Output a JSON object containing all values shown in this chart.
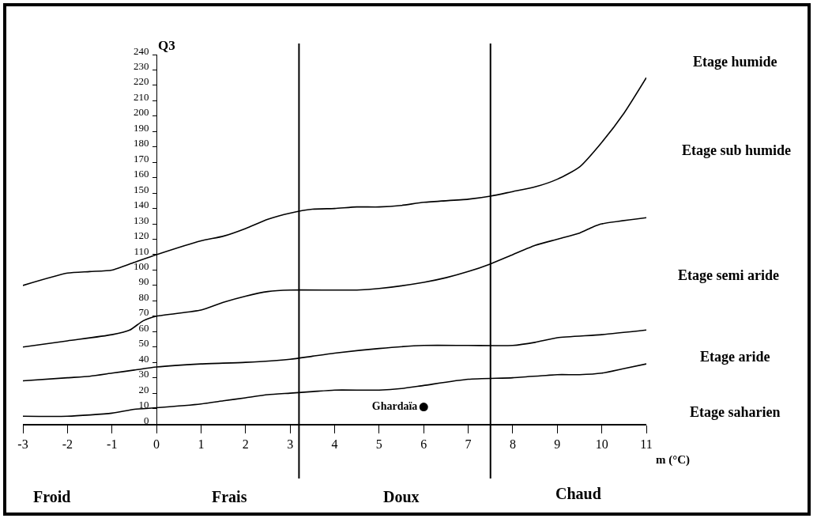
{
  "chart_data": {
    "type": "line",
    "xlabel": "m (°C)",
    "ylabel": "Q3",
    "xlim": [
      -3,
      11
    ],
    "xticks": [
      -3,
      -2,
      -1,
      0,
      1,
      2,
      3,
      4,
      5,
      6,
      7,
      8,
      9,
      10,
      11
    ],
    "ylim": [
      0,
      240
    ],
    "yticks": [
      0,
      10,
      20,
      30,
      40,
      50,
      60,
      70,
      80,
      90,
      100,
      110,
      120,
      130,
      140,
      150,
      160,
      170,
      180,
      190,
      200,
      210,
      220,
      230,
      240
    ],
    "grid": false,
    "legend": false,
    "marker": "none",
    "line_style": "solid",
    "series": [
      {
        "color": "#000000",
        "x": [
          -3,
          -2,
          -1.5,
          -1,
          -0.5,
          0,
          1,
          1.5,
          2,
          2.5,
          3,
          3.5,
          4,
          4.5,
          5,
          5.5,
          6,
          7,
          7.5,
          8,
          8.5,
          9,
          9.5,
          10,
          10.5,
          11
        ],
        "values": [
          90,
          98,
          99,
          100,
          105,
          110,
          119,
          122,
          127,
          133,
          137,
          139.5,
          140,
          141,
          141,
          142,
          144,
          146,
          148,
          151,
          154,
          159,
          167,
          183,
          202,
          225
        ]
      },
      {
        "color": "#000000",
        "x": [
          -3,
          -2,
          -1,
          -0.6,
          -0.3,
          0,
          1,
          1.5,
          2,
          2.5,
          3,
          4.5,
          5,
          6,
          6.5,
          7,
          7.5,
          8,
          8.5,
          9,
          9.5,
          9.8,
          10,
          11
        ],
        "values": [
          50,
          54,
          58,
          61,
          67,
          70,
          74,
          79,
          83,
          86,
          87,
          87,
          88,
          92,
          95,
          99,
          104,
          110,
          116,
          120,
          124,
          128,
          130,
          134
        ]
      },
      {
        "color": "#000000",
        "x": [
          -3,
          -2,
          -1.5,
          -1,
          -0.5,
          0,
          1,
          2,
          3,
          3.5,
          4,
          5,
          6,
          7,
          8,
          8.5,
          9,
          10,
          11
        ],
        "values": [
          28,
          30,
          31,
          33,
          35,
          37,
          39,
          40,
          42,
          44,
          46,
          49,
          51,
          51,
          51,
          53,
          56,
          58,
          61
        ]
      },
      {
        "color": "#000000",
        "x": [
          -3,
          -2,
          -1,
          -0.5,
          0,
          1,
          1.5,
          2,
          2.5,
          3,
          3.5,
          4,
          5,
          5.5,
          6,
          7,
          8,
          9,
          9.5,
          10,
          10.5,
          11
        ],
        "values": [
          5,
          5,
          7,
          9.5,
          10.5,
          13,
          15,
          17,
          19,
          20,
          21,
          22,
          22,
          23,
          25,
          29,
          30,
          32,
          32,
          33,
          36,
          39
        ]
      },
      {
        "type": "scatter",
        "name": "Ghardaïa",
        "color": "#000000",
        "marker": "circle",
        "x": [
          6
        ],
        "values": [
          11
        ]
      }
    ],
    "ref_lines": [
      {
        "axis": "x",
        "value": 3.2,
        "color": "#000000"
      },
      {
        "axis": "x",
        "value": 7.5,
        "color": "#000000"
      }
    ],
    "annotations": [
      "Etage humide",
      "Etage sub humide",
      "Etage semi aride",
      "Etage aride",
      "Etage saharien",
      "Froid",
      "Frais",
      "Doux",
      "Chaud"
    ]
  }
}
